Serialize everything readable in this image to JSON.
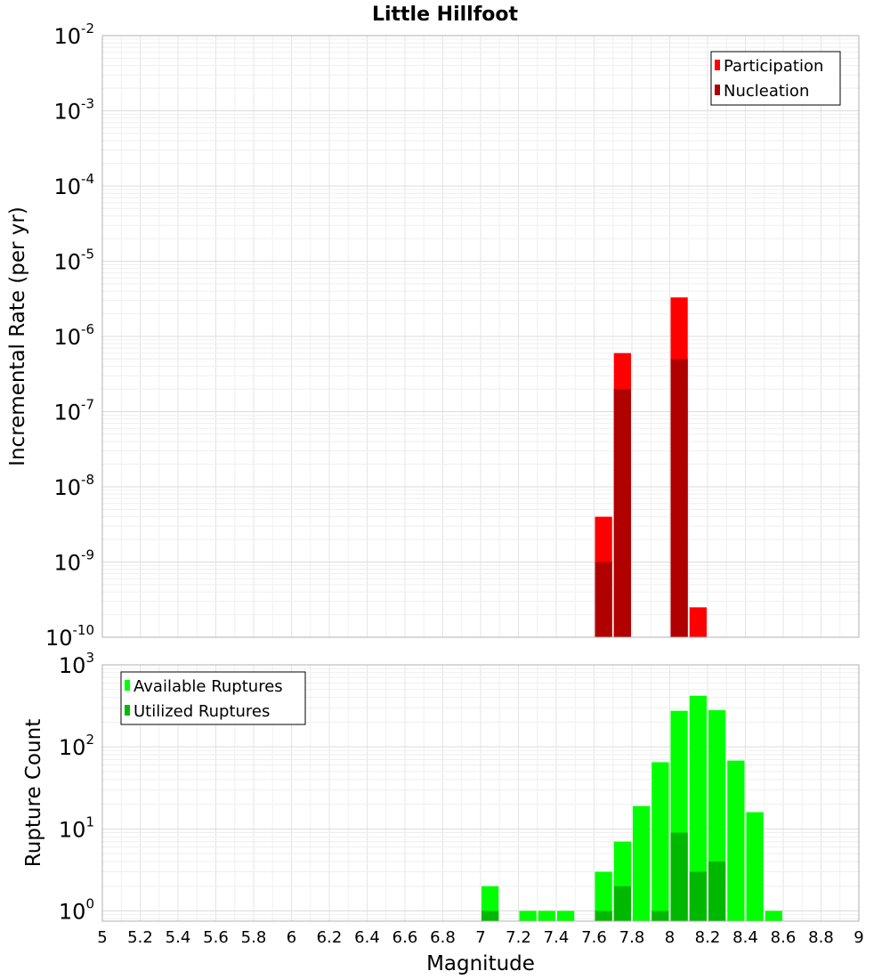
{
  "chart_data": [
    {
      "type": "bar",
      "title": "Little Hillfoot",
      "xlabel": "",
      "ylabel": "Incremental Rate (per yr)",
      "xlim": [
        5,
        9
      ],
      "ylim": [
        1e-10,
        0.01
      ],
      "yscale": "log",
      "grid": true,
      "legend": {
        "position": "top-right",
        "entries": [
          "Participation",
          "Nucleation"
        ]
      },
      "bin_width": 0.1,
      "series": [
        {
          "name": "Participation",
          "color": "#ff0000",
          "points": [
            {
              "x": 7.65,
              "y": 4e-09
            },
            {
              "x": 7.75,
              "y": 6e-07
            },
            {
              "x": 8.05,
              "y": 3.3e-06
            },
            {
              "x": 8.15,
              "y": 2.5e-10
            }
          ]
        },
        {
          "name": "Nucleation",
          "color": "#b00000",
          "points": [
            {
              "x": 7.65,
              "y": 1e-09
            },
            {
              "x": 7.75,
              "y": 2e-07
            },
            {
              "x": 8.05,
              "y": 5e-07
            }
          ]
        }
      ],
      "y_ticks": [
        {
          "base": "10",
          "exp": "-2"
        },
        {
          "base": "10",
          "exp": "-3"
        },
        {
          "base": "10",
          "exp": "-4"
        },
        {
          "base": "10",
          "exp": "-5"
        },
        {
          "base": "10",
          "exp": "-6"
        },
        {
          "base": "10",
          "exp": "-7"
        },
        {
          "base": "10",
          "exp": "-8"
        },
        {
          "base": "10",
          "exp": "-9"
        },
        {
          "base": "10",
          "exp": "-10"
        }
      ]
    },
    {
      "type": "bar",
      "title": "",
      "xlabel": "Magnitude",
      "ylabel": "Rupture Count",
      "xlim": [
        5,
        9
      ],
      "ylim": [
        0.75,
        1000
      ],
      "yscale": "log",
      "grid": true,
      "legend": {
        "position": "top-left",
        "entries": [
          "Available Ruptures",
          "Utilized Ruptures"
        ]
      },
      "bin_width": 0.1,
      "series": [
        {
          "name": "Available Ruptures",
          "color": "#00ff00",
          "points": [
            {
              "x": 7.05,
              "y": 2
            },
            {
              "x": 7.25,
              "y": 1
            },
            {
              "x": 7.35,
              "y": 1
            },
            {
              "x": 7.45,
              "y": 1
            },
            {
              "x": 7.65,
              "y": 3
            },
            {
              "x": 7.75,
              "y": 7
            },
            {
              "x": 7.85,
              "y": 19
            },
            {
              "x": 7.95,
              "y": 65
            },
            {
              "x": 8.05,
              "y": 275
            },
            {
              "x": 8.15,
              "y": 420
            },
            {
              "x": 8.25,
              "y": 280
            },
            {
              "x": 8.35,
              "y": 68
            },
            {
              "x": 8.45,
              "y": 16
            },
            {
              "x": 8.55,
              "y": 1
            }
          ]
        },
        {
          "name": "Utilized Ruptures",
          "color": "#00b800",
          "points": [
            {
              "x": 7.05,
              "y": 1
            },
            {
              "x": 7.65,
              "y": 1
            },
            {
              "x": 7.75,
              "y": 2
            },
            {
              "x": 7.95,
              "y": 1
            },
            {
              "x": 8.05,
              "y": 9
            },
            {
              "x": 8.15,
              "y": 3
            },
            {
              "x": 8.25,
              "y": 4
            }
          ]
        }
      ],
      "x_ticks": [
        "5",
        "5.2",
        "5.4",
        "5.6",
        "5.8",
        "6",
        "6.2",
        "6.4",
        "6.6",
        "6.8",
        "7",
        "7.2",
        "7.4",
        "7.6",
        "7.8",
        "8",
        "8.2",
        "8.4",
        "8.6",
        "8.8",
        "9"
      ],
      "y_ticks": [
        {
          "base": "10",
          "exp": "3"
        },
        {
          "base": "10",
          "exp": "2"
        },
        {
          "base": "10",
          "exp": "1"
        },
        {
          "base": "10",
          "exp": "0"
        }
      ]
    }
  ]
}
